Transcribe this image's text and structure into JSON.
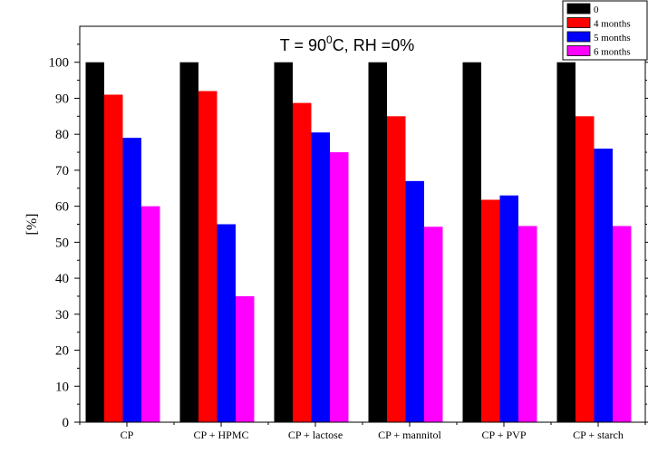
{
  "chart_data": {
    "type": "bar",
    "title": "T = 90",
    "title_sup": "0",
    "title_rest": "C, RH =0%",
    "ylabel": "[%]",
    "xlabel": "",
    "ylim": [
      0,
      110
    ],
    "yticks": [
      0,
      10,
      20,
      30,
      40,
      50,
      60,
      70,
      80,
      90,
      100
    ],
    "categories": [
      "CP",
      "CP + HPMC",
      "CP + lactose",
      "CP + mannitol",
      "CP + PVP",
      "CP + starch"
    ],
    "legend_position": "top-right",
    "grid": false,
    "series": [
      {
        "name": "0",
        "color": "#000000",
        "values": [
          100,
          100,
          100,
          100,
          100,
          100
        ]
      },
      {
        "name": "4 months",
        "color": "#ff0000",
        "values": [
          91,
          92,
          88.7,
          85,
          61.8,
          85
        ]
      },
      {
        "name": "5 months",
        "color": "#0000ff",
        "values": [
          79,
          55,
          80.5,
          67,
          63,
          76
        ]
      },
      {
        "name": "6 months",
        "color": "#ff00ff",
        "values": [
          60,
          35,
          75,
          54.3,
          54.5,
          54.5
        ]
      }
    ]
  }
}
